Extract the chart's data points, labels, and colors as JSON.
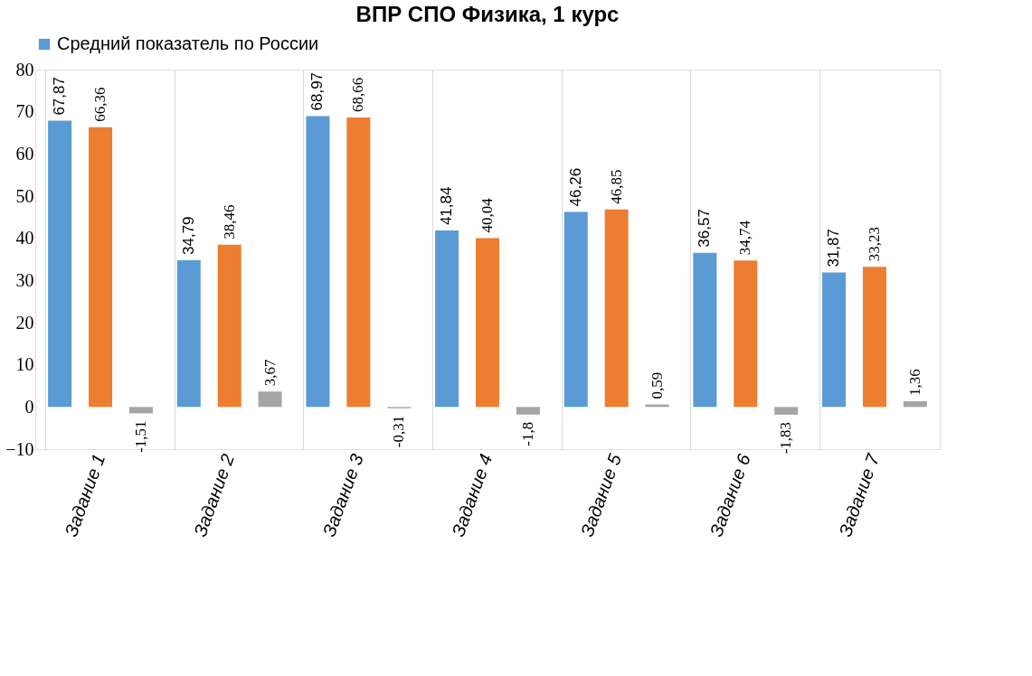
{
  "chart_data": {
    "type": "bar",
    "title": "ВПР СПО Физика, 1 курс",
    "categories": [
      "Задание 1",
      "Задание 2",
      "Задание 3",
      "Задание 4",
      "Задание 5",
      "Задание 6",
      "Задание 7"
    ],
    "series": [
      {
        "name": "Средний показатель по России",
        "color": "#5b9bd5",
        "values": [
          67.87,
          34.79,
          68.97,
          41.84,
          46.26,
          36.57,
          31.87
        ],
        "value_labels": [
          "67,87",
          "34,79",
          "68,97",
          "41,84",
          "46,26",
          "36,57",
          "31,87"
        ]
      },
      {
        "color": "#ed7d31",
        "values": [
          66.36,
          38.46,
          68.66,
          40.04,
          46.85,
          34.74,
          33.23
        ],
        "value_labels": [
          "66,36",
          "38,46",
          "68,66",
          "40,04",
          "46,85",
          "34,74",
          "33,23"
        ]
      },
      {
        "color": "#a5a5a5",
        "values": [
          -1.51,
          3.67,
          -0.31,
          -1.8,
          0.59,
          -1.83,
          1.36
        ],
        "value_labels": [
          "-1,51",
          "3,67",
          "-0,31",
          "-1,8",
          "0,59",
          "-1,83",
          "1,36"
        ]
      }
    ],
    "ylim": [
      -10,
      80
    ],
    "yticks": [
      -10,
      0,
      10,
      20,
      30,
      40,
      50,
      60,
      70,
      80
    ],
    "grid": "x",
    "legend": "top"
  }
}
